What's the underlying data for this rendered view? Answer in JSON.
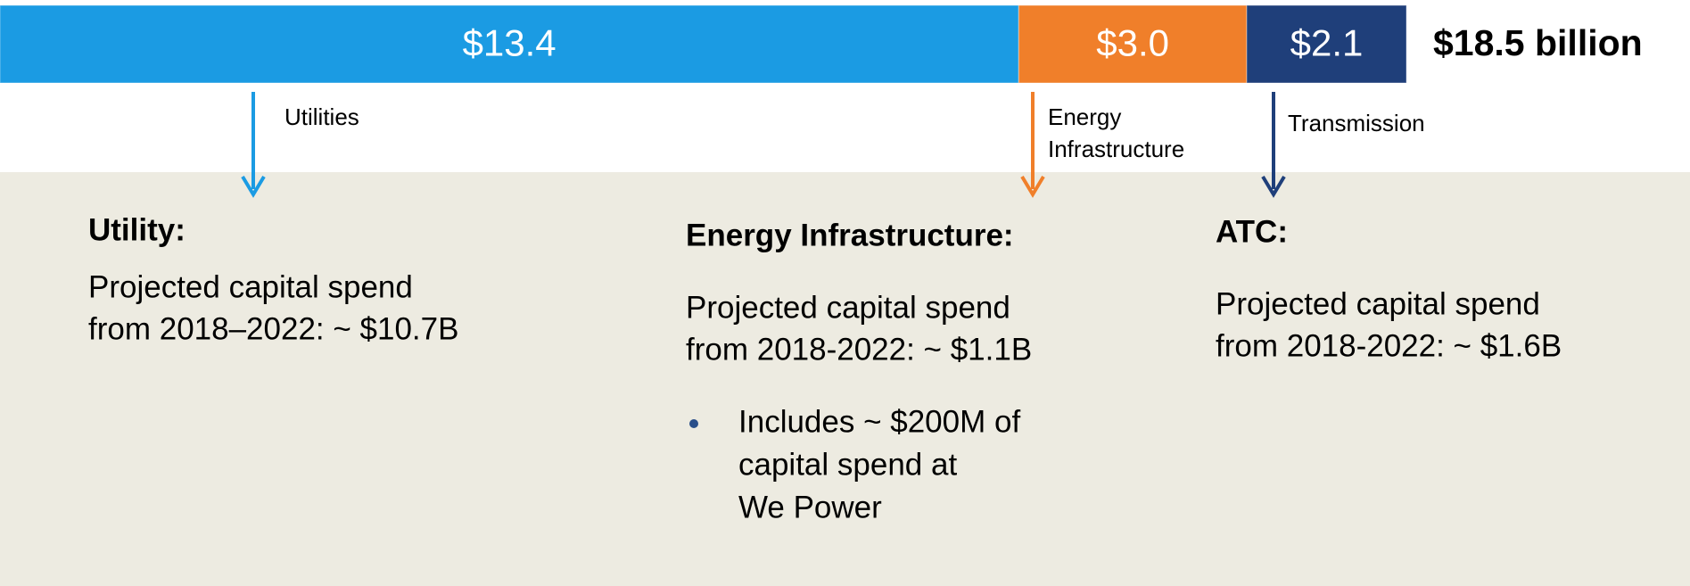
{
  "chart_data": {
    "type": "bar",
    "series": [
      {
        "name": "Utilities",
        "color": "#1b9be3",
        "values": [
          13.4
        ],
        "value_labels": [
          "$13.4"
        ]
      },
      {
        "name": "Energy Infrastructure",
        "color": "#f07f2a",
        "values": [
          3.0
        ],
        "value_labels": [
          "$3.0"
        ]
      },
      {
        "name": "Transmission",
        "color": "#1f3f7a",
        "values": [
          2.1
        ],
        "value_labels": [
          "$2.1"
        ]
      }
    ],
    "xlim": [
      0,
      18.5
    ],
    "total_label": "$18.5 billion"
  },
  "panels": [
    {
      "title": "Utility:",
      "text": [
        "Projected capital spend",
        "from 2018–2022: ~ $10.7B"
      ]
    },
    {
      "title": "Energy Infrastructure:",
      "text": [
        "Projected capital spend",
        "from 2018-2022: ~ $1.1B"
      ],
      "bullets": [
        [
          "Includes ~ $200M of",
          "capital spend at",
          "We Power"
        ]
      ]
    },
    {
      "title": "ATC:",
      "text": [
        "Projected capital spend",
        "from 2018-2022: ~ $1.6B"
      ]
    }
  ]
}
